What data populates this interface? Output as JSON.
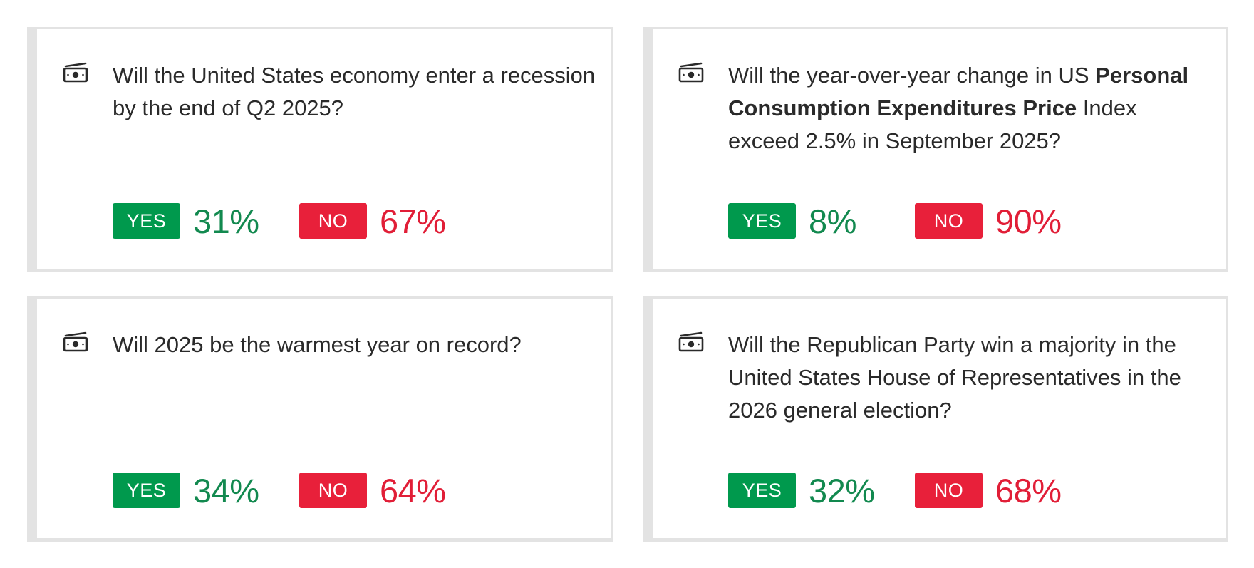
{
  "colors": {
    "yes": "#00994d",
    "yes_text": "#12894f",
    "no": "#e8203a",
    "no_text": "#e11e37",
    "card_border": "#e3e3e3"
  },
  "markets": [
    {
      "icon": "money-icon",
      "question": "Will the United States economy enter a recession by the end of Q2 2025?",
      "yes_label": "YES",
      "yes_pct": "31%",
      "no_label": "NO",
      "no_pct": "67%"
    },
    {
      "icon": "money-icon",
      "question_pre": "Will the year-over-year change in US ",
      "question_bold": "Personal Consumption Expenditures Price",
      "question_post": " Index exceed 2.5% in September 2025?",
      "yes_label": "YES",
      "yes_pct": "8%",
      "no_label": "NO",
      "no_pct": "90%"
    },
    {
      "icon": "money-icon",
      "question": "Will 2025 be the warmest year on record?",
      "yes_label": "YES",
      "yes_pct": "34%",
      "no_label": "NO",
      "no_pct": "64%"
    },
    {
      "icon": "money-icon",
      "question": "Will the Republican Party win a majority in the United States House of Representatives in the 2026 general election?",
      "yes_label": "YES",
      "yes_pct": "32%",
      "no_label": "NO",
      "no_pct": "68%"
    }
  ]
}
